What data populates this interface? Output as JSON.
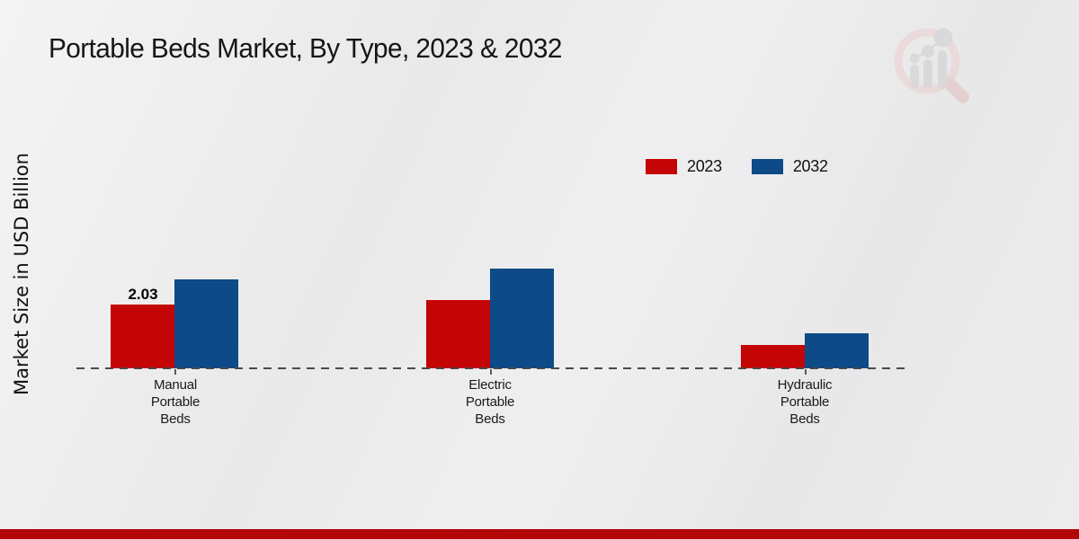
{
  "chart_data": {
    "type": "bar",
    "title": "Portable Beds Market, By Type, 2023 & 2032",
    "ylabel": "Market Size in USD Billion",
    "categories": [
      "Manual\nPortable\nBeds",
      "Electric\nPortable\nBeds",
      "Hydraulic\nPortable\nBeds"
    ],
    "series": [
      {
        "name": "2023",
        "color": "#c40505",
        "values": [
          2.03,
          2.17,
          0.75
        ]
      },
      {
        "name": "2032",
        "color": "#0d4a87",
        "values": [
          2.83,
          3.17,
          1.12
        ]
      }
    ],
    "value_labels": [
      {
        "series": 0,
        "category": 0,
        "text": "2.03"
      }
    ],
    "ylim": [
      0,
      3.5
    ],
    "grid": false,
    "axis_style": "dashed-baseline",
    "legend_position": "top-right"
  },
  "branding": {
    "watermark_icon": "magnifier-bar-chart-icon",
    "footer_color": "#b30606"
  }
}
